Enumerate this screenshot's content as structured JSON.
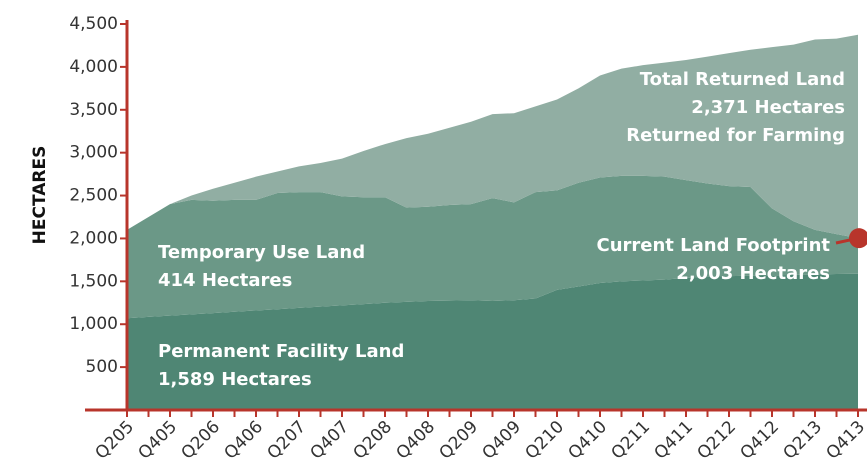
{
  "chart_data": {
    "type": "stacked_area",
    "y_label": "HECTARES",
    "categories": [
      "Q205",
      null,
      "Q405",
      null,
      "Q206",
      null,
      "Q406",
      null,
      "Q207",
      null,
      "Q407",
      null,
      "Q208",
      null,
      "Q408",
      null,
      "Q209",
      null,
      "Q409",
      null,
      "Q210",
      null,
      "Q410",
      null,
      "Q211",
      null,
      "Q411",
      null,
      "Q212",
      null,
      "Q412",
      null,
      "Q213",
      null,
      "Q413"
    ],
    "series": [
      {
        "name": "Permanent Facility Land",
        "color": "#4f8674",
        "values": [
          1070,
          1085,
          1100,
          1115,
          1130,
          1145,
          1160,
          1175,
          1190,
          1205,
          1220,
          1235,
          1250,
          1260,
          1270,
          1275,
          1280,
          1270,
          1280,
          1300,
          1400,
          1440,
          1480,
          1500,
          1510,
          1520,
          1540,
          1550,
          1560,
          1565,
          1570,
          1575,
          1580,
          1585,
          1589
        ]
      },
      {
        "name": "Temporary Use Land",
        "color": "#6b9887",
        "values": [
          1030,
          1165,
          1300,
          1335,
          1310,
          1305,
          1290,
          1355,
          1350,
          1335,
          1270,
          1245,
          1230,
          1100,
          1100,
          1115,
          1120,
          1200,
          1140,
          1240,
          1160,
          1210,
          1230,
          1230,
          1220,
          1200,
          1140,
          1090,
          1050,
          1035,
          780,
          625,
          520,
          465,
          414
        ]
      },
      {
        "name": "Total Returned Land",
        "color": "#91aea3",
        "values": [
          0,
          0,
          0,
          50,
          140,
          200,
          270,
          250,
          300,
          340,
          440,
          540,
          620,
          810,
          850,
          900,
          960,
          980,
          1040,
          1000,
          1060,
          1100,
          1190,
          1250,
          1290,
          1330,
          1400,
          1480,
          1550,
          1600,
          1880,
          2060,
          2220,
          2280,
          2371
        ]
      }
    ],
    "annotations": [
      {
        "lines": [
          "Total Returned Land",
          "2,371 Hectares",
          "Returned for Farming"
        ]
      },
      {
        "lines": [
          "Current Land Footprint",
          "2,003 Hectares"
        ]
      },
      {
        "lines": [
          "Temporary Use Land",
          "414 Hectares"
        ]
      },
      {
        "lines": [
          "Permanent Facility Land",
          "1,589 Hectares"
        ]
      }
    ],
    "ylim": [
      0,
      4500
    ],
    "yticks": [
      500,
      {
        "value": 1000,
        "label": "1,000"
      },
      {
        "value": 1500,
        "label": "1,500"
      },
      {
        "value": 2000,
        "label": "2,000"
      },
      {
        "value": 2500,
        "label": "2,500"
      },
      {
        "value": 3000,
        "label": "3,000"
      },
      {
        "value": 3500,
        "label": "3,500"
      },
      {
        "value": 4000,
        "label": "4,000"
      },
      {
        "value": 4500,
        "label": "4,500"
      }
    ],
    "axis_color": "#b8352b"
  }
}
